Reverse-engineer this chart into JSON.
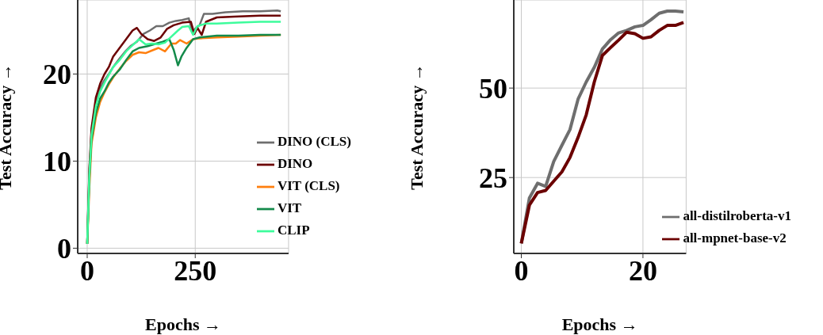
{
  "chart_data": [
    {
      "type": "line",
      "xlabel": "Epochs →",
      "ylabel": "Test Accuracy →",
      "xlim": [
        -22,
        466
      ],
      "ylim": [
        -0.6,
        28.5
      ],
      "xticks": [
        0,
        250
      ],
      "yticks": [
        0,
        10,
        20
      ],
      "grid": true,
      "legend": "bottom right",
      "series": [
        {
          "name": "DINO (CLS)",
          "color": "#6e6e6e",
          "x": [
            0,
            5,
            10,
            20,
            30,
            40,
            50,
            60,
            75,
            90,
            100,
            115,
            130,
            145,
            160,
            175,
            190,
            205,
            220,
            235,
            245,
            250,
            260,
            270,
            290,
            320,
            360,
            400,
            440,
            448
          ],
          "values": [
            0.5,
            8.8,
            13.4,
            16.8,
            18.4,
            19.3,
            20.0,
            20.8,
            21.8,
            22.7,
            23.2,
            23.7,
            24.6,
            25.0,
            25.5,
            25.5,
            25.9,
            26.1,
            26.2,
            26.4,
            24.6,
            25.2,
            25.6,
            26.9,
            26.9,
            27.1,
            27.2,
            27.2,
            27.3,
            27.2
          ]
        },
        {
          "name": "DINO",
          "color": "#6b0000",
          "x": [
            0,
            5,
            10,
            20,
            30,
            40,
            50,
            60,
            75,
            90,
            105,
            115,
            125,
            140,
            155,
            170,
            185,
            200,
            220,
            240,
            248,
            255,
            265,
            275,
            300,
            340,
            400,
            448
          ],
          "values": [
            0.5,
            9.2,
            13.8,
            17.3,
            18.9,
            20.0,
            20.8,
            22.0,
            23.0,
            24.0,
            25.0,
            25.3,
            24.6,
            24.0,
            23.8,
            24.2,
            25.2,
            25.6,
            25.9,
            26.0,
            24.6,
            25.3,
            24.5,
            26.0,
            26.5,
            26.6,
            26.7,
            26.7
          ]
        },
        {
          "name": "VIT (CLS)",
          "color": "#ff7f0e",
          "x": [
            0,
            5,
            10,
            20,
            30,
            40,
            50,
            60,
            75,
            90,
            105,
            120,
            135,
            150,
            165,
            180,
            195,
            205,
            215,
            230,
            245,
            260,
            300,
            350,
            400,
            448
          ],
          "values": [
            0.5,
            7.0,
            12.0,
            15.0,
            16.8,
            17.9,
            18.8,
            19.6,
            20.6,
            21.5,
            22.2,
            22.5,
            22.4,
            22.7,
            23.0,
            22.6,
            23.5,
            23.5,
            23.9,
            23.5,
            24.0,
            24.1,
            24.2,
            24.3,
            24.4,
            24.5
          ]
        },
        {
          "name": "VIT",
          "color": "#138a4a",
          "x": [
            0,
            5,
            10,
            20,
            30,
            40,
            50,
            60,
            75,
            90,
            105,
            120,
            140,
            160,
            175,
            190,
            200,
            210,
            218,
            230,
            245,
            260,
            300,
            350,
            400,
            448
          ],
          "values": [
            0.5,
            8.0,
            12.5,
            15.5,
            17.2,
            18.0,
            19.0,
            19.7,
            20.5,
            21.6,
            22.6,
            23.0,
            23.2,
            23.5,
            23.7,
            24.0,
            22.8,
            21.0,
            22.0,
            23.0,
            24.0,
            24.2,
            24.4,
            24.4,
            24.5,
            24.5
          ]
        },
        {
          "name": "CLIP",
          "color": "#3dfc9c",
          "x": [
            0,
            5,
            10,
            20,
            30,
            40,
            50,
            60,
            75,
            90,
            105,
            120,
            135,
            150,
            165,
            180,
            195,
            210,
            220,
            235,
            245,
            255,
            275,
            300,
            350,
            400,
            448
          ],
          "values": [
            0.5,
            8.4,
            13.0,
            16.3,
            18.0,
            19.0,
            19.9,
            20.8,
            21.6,
            22.6,
            23.3,
            24.0,
            23.4,
            23.5,
            23.4,
            23.6,
            24.3,
            25.0,
            25.4,
            25.5,
            24.5,
            25.5,
            25.8,
            25.8,
            25.9,
            26.0,
            26.0
          ]
        }
      ]
    },
    {
      "type": "line",
      "xlabel": "Epochs →",
      "ylabel": "Test Accuracy →",
      "xlim": [
        -1.24,
        27.1
      ],
      "ylim": [
        3.8,
        74.6
      ],
      "xticks": [
        0,
        20
      ],
      "yticks": [
        25,
        50
      ],
      "grid": true,
      "legend": "bottom right",
      "series": [
        {
          "name": "all-distilroberta-v1",
          "color": "#6e6e6e",
          "x": [
            0,
            1.33,
            2.67,
            4,
            5.33,
            6.67,
            8,
            9.33,
            10.67,
            12,
            13.33,
            14.67,
            16,
            17.33,
            18.67,
            20,
            21.33,
            22.67,
            24,
            25.33,
            26.67
          ],
          "values": [
            6.6,
            19.3,
            23.4,
            22.5,
            29.5,
            34.0,
            38.4,
            46.9,
            51.7,
            55.8,
            60.9,
            63.5,
            65.4,
            66.1,
            67.1,
            67.5,
            69.1,
            70.9,
            71.5,
            71.5,
            71.3
          ]
        },
        {
          "name": "all-mpnet-base-v2",
          "color": "#6b0000",
          "x": [
            0,
            1.33,
            2.67,
            4,
            5.33,
            6.67,
            8,
            9.33,
            10.67,
            12,
            13.33,
            14.67,
            16,
            17.33,
            18.67,
            20,
            21.33,
            22.67,
            24,
            25.33,
            26.67
          ],
          "values": [
            6.6,
            17.3,
            20.8,
            21.4,
            24.0,
            26.6,
            30.6,
            36.2,
            42.5,
            51.7,
            59.1,
            61.3,
            63.4,
            65.6,
            65.2,
            63.9,
            64.3,
            66.1,
            67.5,
            67.5,
            68.3
          ]
        }
      ]
    }
  ]
}
